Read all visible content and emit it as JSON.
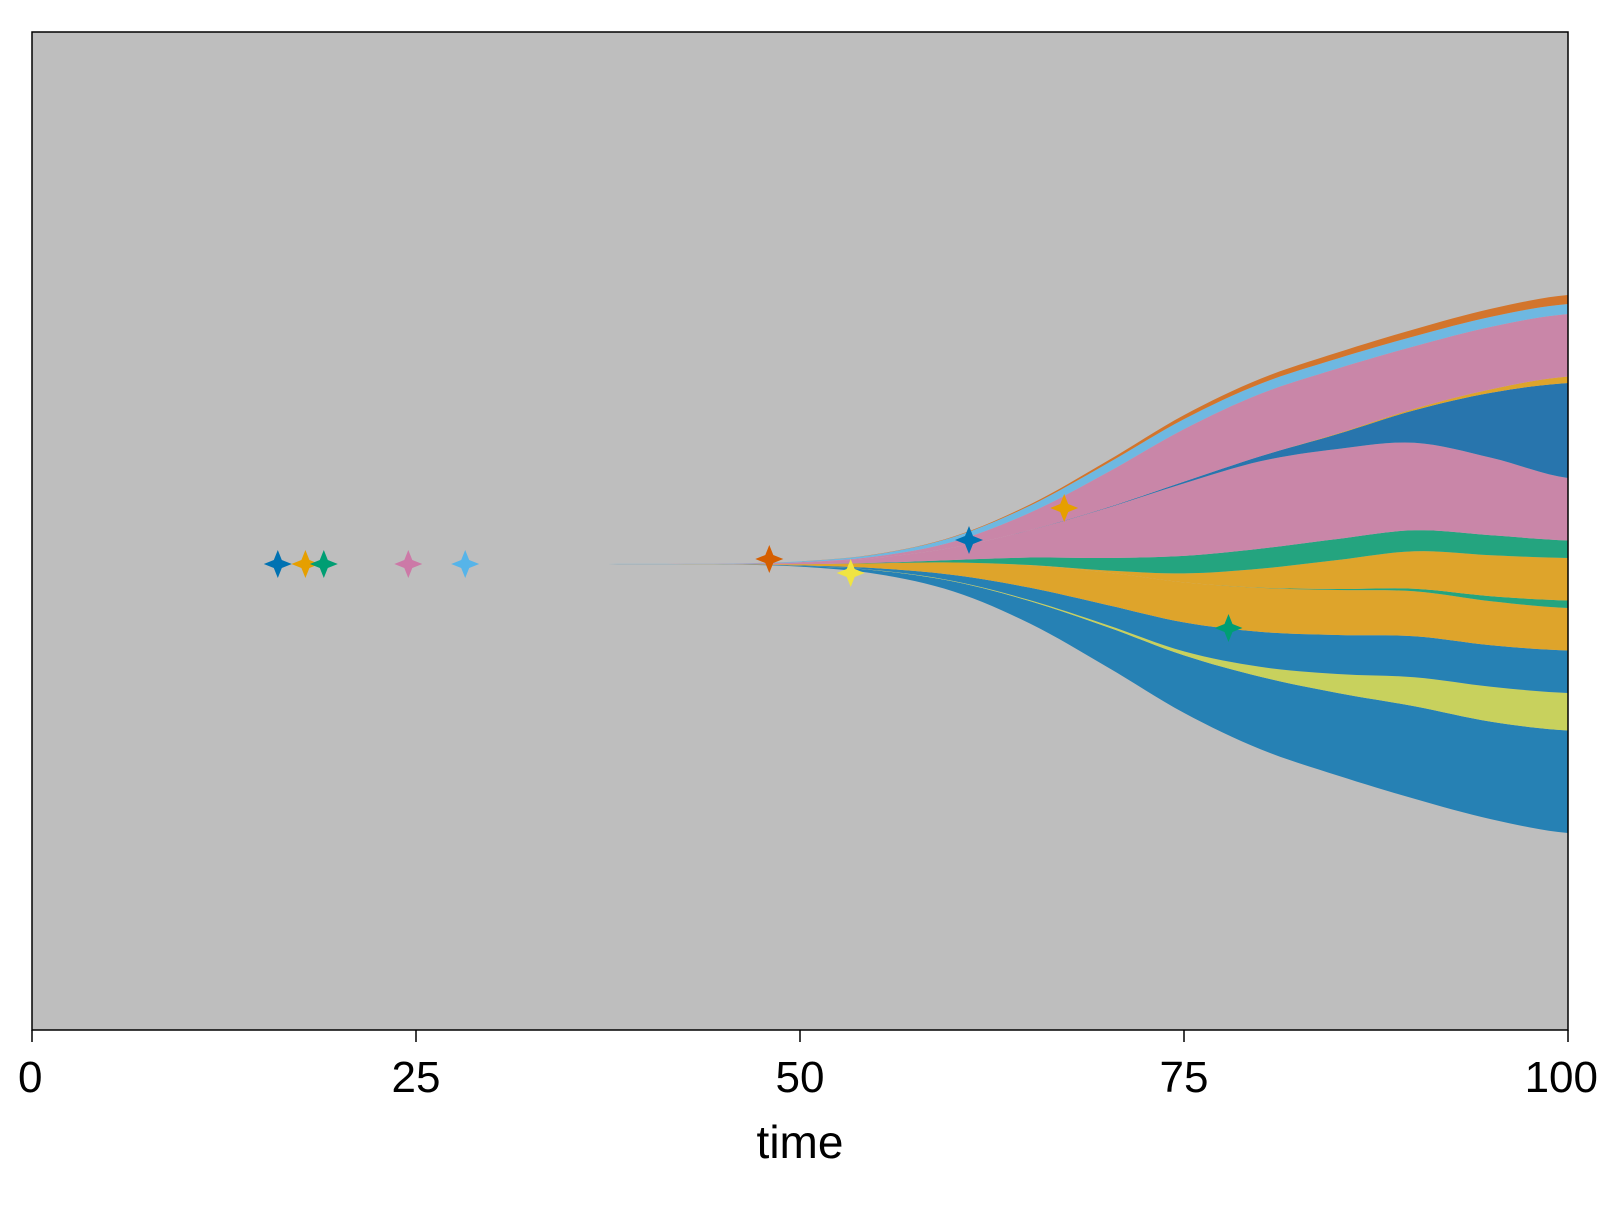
{
  "chart_data": {
    "type": "area",
    "subtype": "fish-plot (clonal evolution muller plot)",
    "title": "",
    "xlabel": "time",
    "ylabel": "",
    "xlim": [
      0,
      100
    ],
    "xticks": [
      "0",
      "25",
      "50",
      "75",
      "100"
    ],
    "xtick_values": [
      0,
      25,
      50,
      75,
      100
    ],
    "grid": false,
    "legend": "none",
    "background_color": "#bebebe",
    "x": [
      0,
      30,
      45,
      50,
      55,
      60,
      65,
      70,
      75,
      80,
      85,
      90,
      95,
      100
    ],
    "layers": [
      {
        "color": "#2681b4",
        "values": [
          0,
          0,
          0.02,
          0.15,
          0.7,
          2.0,
          4.5,
          8.0,
          11.5,
          14.5,
          16.5,
          18.5,
          19.5,
          20.5
        ]
      },
      {
        "color": "#c8d15d",
        "values": [
          0,
          0,
          0,
          0,
          0.05,
          0.1,
          0.2,
          0.4,
          0.8,
          2.0,
          3.8,
          5.8,
          7.0,
          7.5
        ]
      },
      {
        "color": "#2681b4",
        "values": [
          0,
          0,
          0.02,
          0.1,
          0.4,
          1.2,
          2.5,
          4.0,
          5.8,
          7.0,
          7.8,
          8.2,
          8.3,
          8.5
        ]
      },
      {
        "color": "#dea42b",
        "values": [
          0,
          0,
          0.02,
          0.25,
          1.0,
          2.5,
          4.5,
          6.5,
          8.0,
          8.8,
          9.0,
          9.0,
          8.8,
          8.5
        ]
      },
      {
        "color": "#24a47f",
        "values": [
          0,
          0,
          0,
          0,
          0,
          0,
          0,
          0,
          0,
          0.05,
          0.2,
          0.5,
          1.0,
          1.5
        ]
      },
      {
        "color": "#dea42b",
        "values": [
          0,
          0,
          0,
          0,
          0,
          0,
          0.05,
          0.4,
          1.8,
          3.8,
          5.8,
          7.5,
          8.2,
          8.5
        ]
      },
      {
        "color": "#24a47f",
        "values": [
          0,
          0,
          0,
          0,
          0.08,
          0.5,
          1.5,
          2.5,
          3.5,
          4.0,
          4.2,
          4.2,
          4.0,
          3.5
        ]
      },
      {
        "color": "#c986a8",
        "values": [
          0,
          0,
          0.05,
          0.3,
          1.0,
          2.5,
          5.5,
          10.0,
          14.5,
          17.5,
          18.0,
          17.5,
          15.5,
          12.5
        ]
      },
      {
        "color": "#2875ad",
        "values": [
          0,
          0,
          0,
          0,
          0,
          0,
          0.02,
          0.08,
          0.35,
          1.0,
          3.0,
          6.5,
          13.0,
          19.0
        ]
      },
      {
        "color": "#dea42b",
        "values": [
          0,
          0,
          0,
          0,
          0,
          0,
          0,
          0,
          0,
          0,
          0.1,
          0.3,
          0.7,
          1.3
        ]
      },
      {
        "color": "#c986a8",
        "values": [
          0,
          0,
          0,
          0.1,
          0.3,
          1.2,
          3.5,
          7.0,
          10.5,
          12.5,
          13.0,
          12.5,
          12.5,
          12.5
        ]
      },
      {
        "color": "#6eb8e1",
        "values": [
          0,
          0,
          0.03,
          0.15,
          0.4,
          0.9,
          1.4,
          1.8,
          2.0,
          2.0,
          2.0,
          2.0,
          2.0,
          2.0
        ]
      },
      {
        "color": "#d3752c",
        "values": [
          0,
          0,
          0,
          0.02,
          0.05,
          0.1,
          0.25,
          0.5,
          0.8,
          1.0,
          1.2,
          1.4,
          1.6,
          1.8
        ]
      }
    ],
    "markers": [
      {
        "x": 16.0,
        "y": 0.0,
        "color": "#0072b2"
      },
      {
        "x": 17.8,
        "y": 0.0,
        "color": "#e69f00"
      },
      {
        "x": 19.0,
        "y": 0.0,
        "color": "#009e73"
      },
      {
        "x": 24.5,
        "y": 0.0,
        "color": "#cc79a7"
      },
      {
        "x": 28.2,
        "y": 0.0,
        "color": "#56b4e9"
      },
      {
        "x": 48.0,
        "y": 0.25,
        "color": "#d55e00"
      },
      {
        "x": 53.3,
        "y": -0.45,
        "color": "#f0e442"
      },
      {
        "x": 61.0,
        "y": 1.2,
        "color": "#0072b2"
      },
      {
        "x": 67.2,
        "y": 2.8,
        "color": "#e69f00"
      },
      {
        "x": 77.9,
        "y": -3.2,
        "color": "#009e73"
      }
    ]
  }
}
